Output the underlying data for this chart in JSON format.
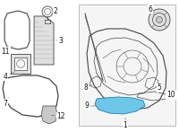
{
  "bg_color": "#ffffff",
  "line_color": "#444444",
  "highlight_color": "#6ec6e8",
  "box_bg": "#f5f5f5",
  "box_border": "#bbbbbb",
  "gray_fill": "#c8c8c8",
  "light_gray": "#e0e0e0",
  "dark_gray": "#999999"
}
